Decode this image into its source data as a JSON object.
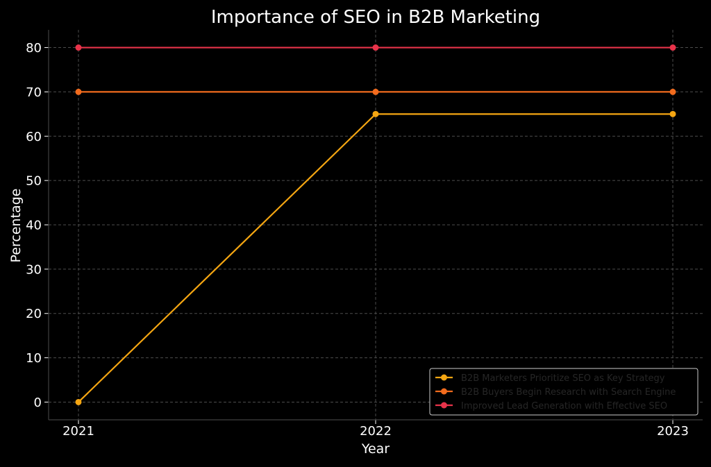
{
  "chart_data": {
    "type": "line",
    "title": "Importance of SEO in B2B Marketing",
    "xlabel": "Year",
    "ylabel": "Percentage",
    "x": [
      "2021",
      "2022",
      "2023"
    ],
    "ylim": [
      -4,
      84
    ],
    "yticks": [
      0,
      10,
      20,
      30,
      40,
      50,
      60,
      70,
      80
    ],
    "grid": true,
    "legend_position": "bottom-right",
    "series": [
      {
        "name": "B2B Marketers Prioritize SEO as Key Strategy",
        "values": [
          0,
          65,
          65
        ],
        "color": "#f5a612"
      },
      {
        "name": "B2B Buyers Begin Research with Search Engine",
        "values": [
          70,
          70,
          70
        ],
        "color": "#f26b1d"
      },
      {
        "name": "Improved Lead Generation with Effective SEO",
        "values": [
          80,
          80,
          80
        ],
        "color": "#e8334a"
      }
    ]
  },
  "colors": {
    "background": "#000000",
    "text": "#ffffff",
    "grid": "#4d4d4d",
    "axis": "#404040",
    "legend_text": "#262626",
    "legend_border": "#cccccc"
  }
}
